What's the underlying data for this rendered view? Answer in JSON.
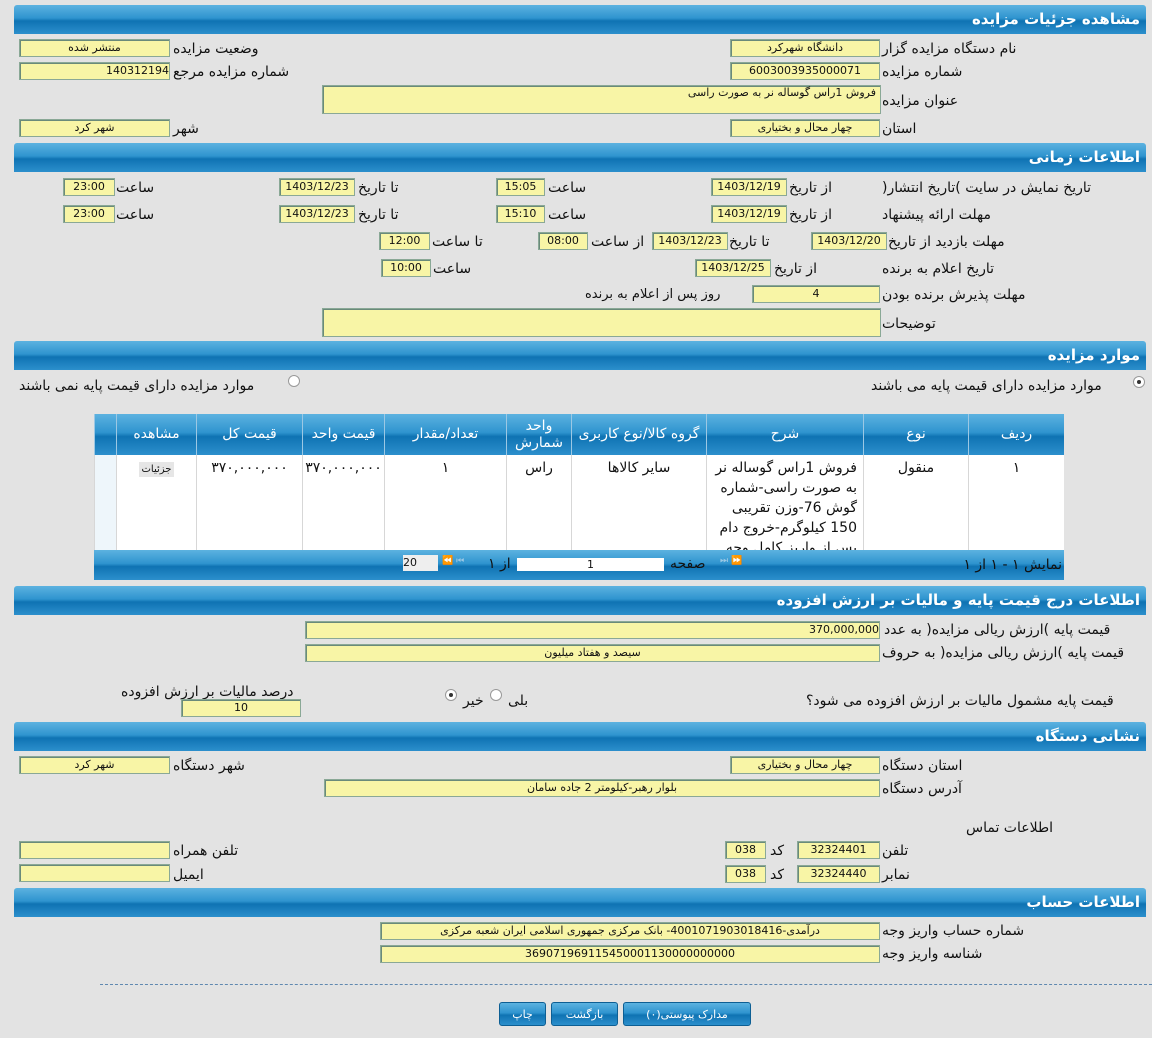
{
  "details": {
    "title": "مشاهده جزئیات مزایده",
    "organizer_label": "نام دستگاه مزایده گزار",
    "organizer": "دانشگاه شهرکرد",
    "status_label": "وضعیت مزایده",
    "status": "منتشر شده",
    "number_label": "شماره مزایده",
    "number": "6003003935000071",
    "ref_label": "شماره مزایده مرجع",
    "ref": "140312194",
    "subject_label": "عنوان مزایده",
    "subject": "فروش 1راس گوساله نر به صورت راسی",
    "province_label": "استان",
    "province": "چهار محال و بختیاری",
    "city_label": "شهر",
    "city": "شهر کرد"
  },
  "timing": {
    "title": "اطلاعات زمانی",
    "from_date": "از تاریخ",
    "to_date": "تا تاریخ",
    "time": "ساعت",
    "from_time": "از ساعت",
    "to_time": "تا ساعت",
    "publish_label": "تاریخ نمایش در سایت )تاریخ انتشار(",
    "publish_from": "1403/12/19",
    "publish_from_time": "15:05",
    "publish_to": "1403/12/23",
    "publish_to_time": "23:00",
    "offer_label": "مهلت ارائه پیشنهاد",
    "offer_from": "1403/12/19",
    "offer_from_time": "15:10",
    "offer_to": "1403/12/23",
    "offer_to_time": "23:00",
    "visit_label": "مهلت بازدید  از تاریخ",
    "visit_from": "1403/12/20",
    "visit_to": "1403/12/23",
    "visit_from_time": "08:00",
    "visit_to_time": "12:00",
    "winner_label": "تاریخ اعلام به برنده",
    "winner_date": "1403/12/25",
    "winner_time": "10:00",
    "accept_label": "مهلت پذیرش برنده بودن",
    "accept_days": "4",
    "accept_suffix": "روز پس از اعلام به برنده",
    "notes_label": "توضیحات",
    "notes": ""
  },
  "items": {
    "title": "موارد مزایده",
    "radio_with": "موارد مزایده دارای قیمت پایه می باشند",
    "radio_without": "موارد مزایده دارای قیمت پایه نمی باشند",
    "columns": [
      "ردیف",
      "نوع",
      "شرح",
      "گروه کالا/نوع کاربری",
      "واحد شمارش",
      "تعداد/مقدار",
      "قیمت واحد",
      "قیمت کل",
      "مشاهده"
    ],
    "rows": [
      {
        "row": "۱",
        "type": "منقول",
        "desc": "فروش 1راس گوساله نر به صورت راسی-شماره گوش 76-وزن تقریبی 150 کیلوگرم-خروج دام پس از واریز کامل وجه",
        "group": "سایر کالاها",
        "unit": "راس",
        "qty": "۱",
        "unit_price": "۳۷۰,۰۰۰,۰۰۰",
        "total": "۳۷۰,۰۰۰,۰۰۰",
        "view": "جزئیات"
      }
    ],
    "pager": {
      "summary": "نمایش ۱ - ۱ از ۱",
      "page_label": "صفحه",
      "page": "1",
      "of": "از ۱",
      "page_size": "20"
    }
  },
  "price": {
    "title": "اطلاعات درج قیمت پایه و مالیات بر ارزش افزوده",
    "num_label": "قیمت پایه )ارزش ریالی مزایده( به عدد",
    "num": "370,000,000",
    "words_label": "قیمت پایه )ارزش ریالی مزایده( به حروف",
    "words": "سیصد و هفتاد میلیون",
    "vat_q": "قیمت پایه مشمول مالیات بر ارزش افزوده می شود؟",
    "yes": "بلی",
    "no": "خیر",
    "vat_pct_label": "درصد مالیات بر ارزش افزوده",
    "vat_pct": "10"
  },
  "address": {
    "title": "نشانی دستگاه",
    "province_label": "استان دستگاه",
    "province": "چهار محال و بختیاری",
    "city_label": "شهر دستگاه",
    "city": "شهر کرد",
    "addr_label": "آدرس دستگاه",
    "addr": "بلوار رهبر-کیلومتر 2 جاده سامان",
    "contact_label": "اطلاعات تماس",
    "phone_label": "تلفن",
    "phone": "32324401",
    "code_label": "کد",
    "phone_code": "038",
    "fax_label": "نمابر",
    "fax": "32324440",
    "fax_code": "038",
    "mobile_label": "تلفن همراه",
    "mobile": "",
    "email_label": "ایمیل",
    "email": ""
  },
  "account": {
    "title": "اطلاعات حساب",
    "acc_label": "شماره حساب واریز وجه",
    "acc": "درآمدی-4001071903018416- بانک مرکزی جمهوری اسلامی ایران شعبه مرکزی",
    "id_label": "شناسه واریز وجه",
    "id": "369071969115450001130000000000"
  },
  "buttons": {
    "print": "چاپ",
    "back": "بازگشت",
    "attachments": "مدارک پیوستی(۰)"
  }
}
